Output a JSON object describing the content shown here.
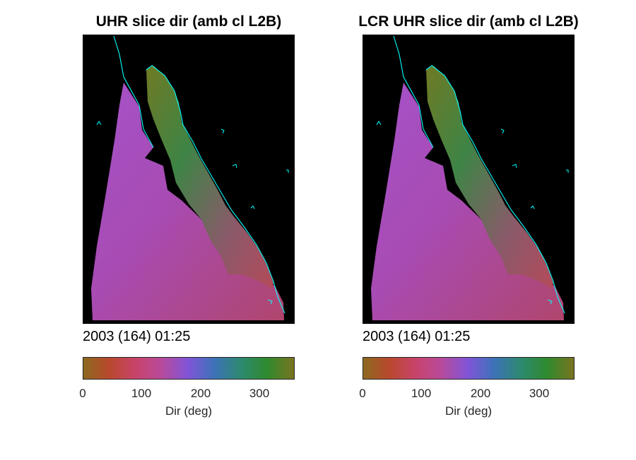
{
  "chart_data": [
    {
      "type": "heatmap",
      "title": "UHR slice dir (amb cl L2B)",
      "timestamp": "2003 (164) 01:25",
      "colorbar": {
        "label": "Dir (deg)",
        "ticks": [
          0,
          100,
          200,
          300
        ],
        "range": [
          0,
          360
        ]
      },
      "colormap_stops": [
        "#8b6a1e",
        "#b8492c",
        "#c8436b",
        "#b84a9b",
        "#7f55d8",
        "#3d72b8",
        "#2d8a6e",
        "#2e8a2e",
        "#7a7420"
      ],
      "overlay_color": "#00ffff",
      "background_color": "#000000"
    },
    {
      "type": "heatmap",
      "title": "LCR UHR slice dir (amb cl L2B)",
      "timestamp": "2003 (164) 01:25",
      "colorbar": {
        "label": "Dir (deg)",
        "ticks": [
          0,
          100,
          200,
          300
        ],
        "range": [
          0,
          360
        ]
      },
      "colormap_stops": [
        "#8b6a1e",
        "#b8492c",
        "#c8436b",
        "#b84a9b",
        "#7f55d8",
        "#3d72b8",
        "#2d8a6e",
        "#2e8a2e",
        "#7a7420"
      ],
      "overlay_color": "#00ffff",
      "background_color": "#000000"
    }
  ]
}
